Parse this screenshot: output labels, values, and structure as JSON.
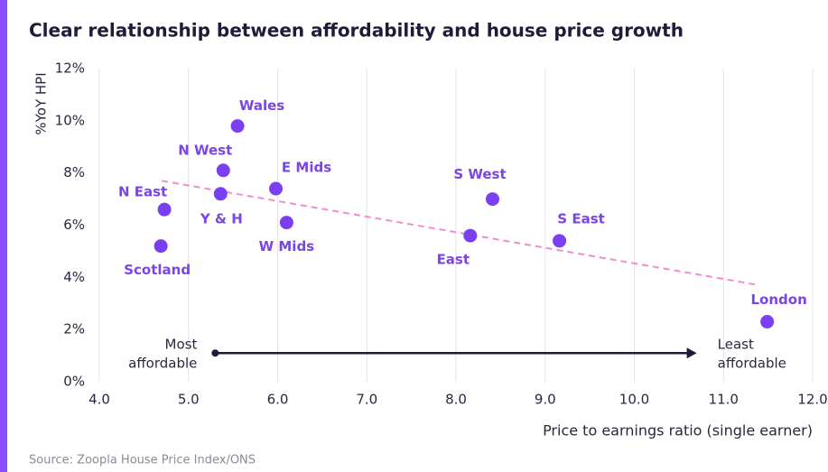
{
  "chart_data": {
    "type": "scatter",
    "title": "Clear relationship between affordability and house price growth",
    "ylabel": "%YoY HPI",
    "xlabel": "Price to earnings ratio (single earner)",
    "source": "Source: Zoopla House Price Index/ONS",
    "color": "#7b3ff2",
    "labels": [
      "Wales",
      "N West",
      "Y & H",
      "E Mids",
      "N East",
      "Scotland",
      "W Mids",
      "S West",
      "East",
      "S East",
      "London"
    ],
    "x": [
      5.55,
      5.39,
      5.36,
      5.98,
      4.73,
      4.69,
      6.1,
      8.41,
      8.16,
      9.16,
      11.49
    ],
    "y": [
      9.8,
      8.1,
      7.2,
      7.4,
      6.6,
      5.2,
      6.1,
      7.0,
      5.6,
      5.4,
      2.3
    ],
    "xlim": [
      4,
      12
    ],
    "ylim": [
      0,
      12
    ],
    "xticks": [
      {
        "value": 4,
        "label": "4.0"
      },
      {
        "value": 5,
        "label": "5.0"
      },
      {
        "value": 6,
        "label": "6.0"
      },
      {
        "value": 7,
        "label": "7.0"
      },
      {
        "value": 8,
        "label": "8.0"
      },
      {
        "value": 9,
        "label": "9.0"
      },
      {
        "value": 10,
        "label": "10.0"
      },
      {
        "value": 11,
        "label": "11.0"
      },
      {
        "value": 12,
        "label": "12.0"
      }
    ],
    "yticks": [
      {
        "value": 0,
        "label": "0%"
      },
      {
        "value": 2,
        "label": "2%"
      },
      {
        "value": 4,
        "label": "4%"
      },
      {
        "value": 6,
        "label": "6%"
      },
      {
        "value": 8,
        "label": "8%"
      },
      {
        "value": 10,
        "label": "10%"
      },
      {
        "value": 12,
        "label": "12%"
      }
    ],
    "grid": true,
    "trendline": {
      "x": [
        4.7,
        11.4
      ],
      "y": [
        7.7,
        3.7
      ],
      "color": "#f28bd2"
    },
    "arrow": {
      "x": [
        5.3,
        10.7
      ],
      "y": [
        1.1,
        1.1
      ],
      "color": "#1f1c3a",
      "start_label": [
        "Most",
        "affordable"
      ],
      "end_label": [
        "Least",
        "affordable"
      ]
    }
  }
}
